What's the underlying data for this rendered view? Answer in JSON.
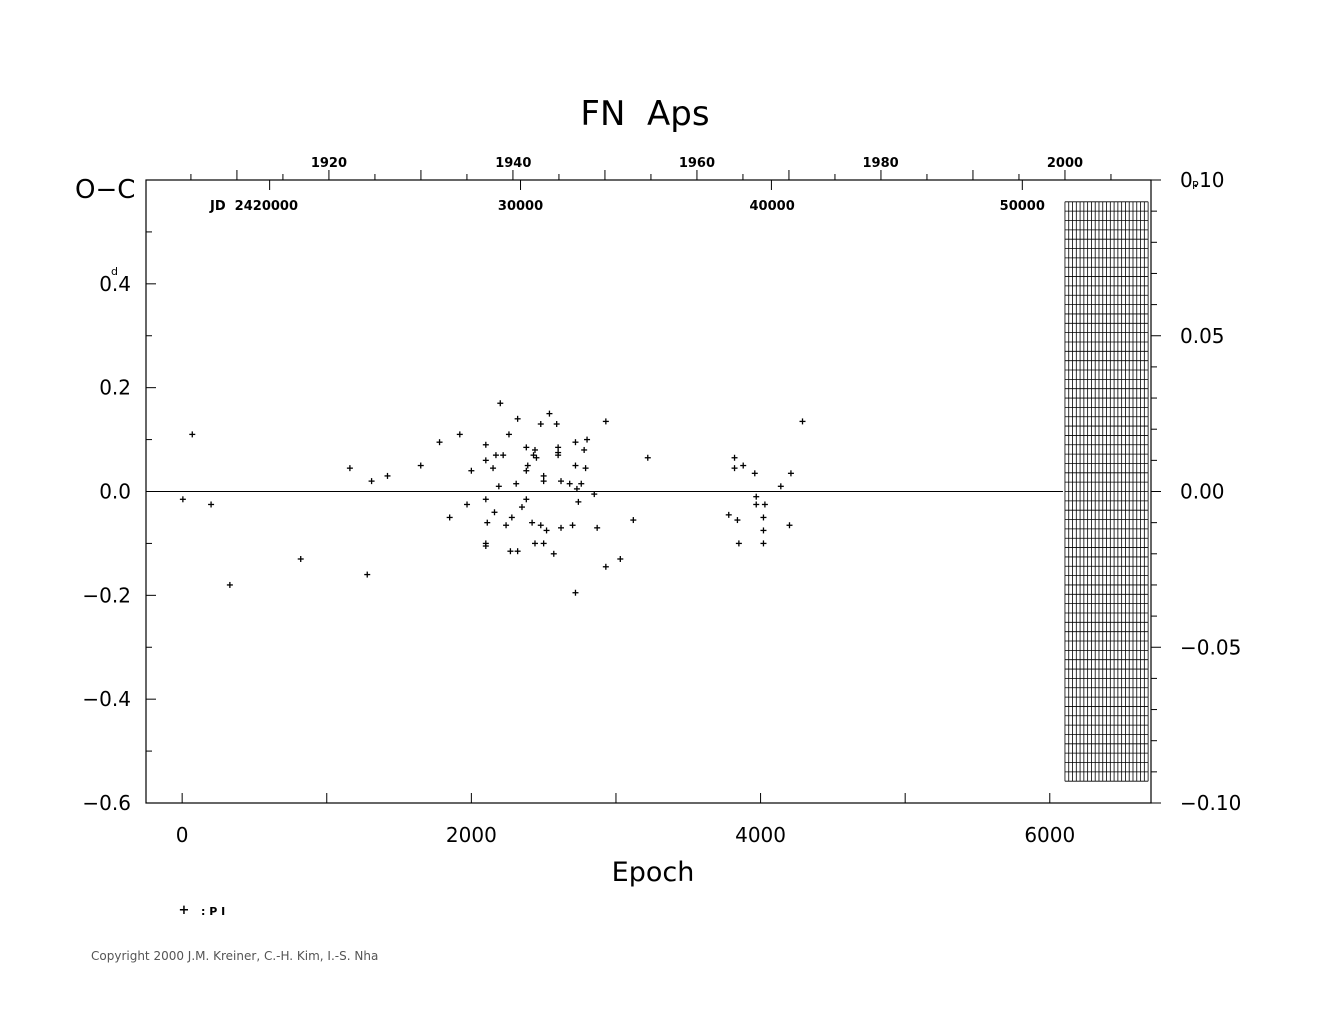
{
  "chart_data": {
    "type": "scatter",
    "title": "FN  Aps",
    "xlabel": "Epoch",
    "ylabel": "O−C",
    "y_unit_mark": "d",
    "right_unit_mark": "P",
    "jd_label": "JD  2420000",
    "xlim": [
      -250,
      6700
    ],
    "ylim": [
      -0.6,
      0.6
    ],
    "x_ticks": [
      "0",
      "2000",
      "4000",
      "6000"
    ],
    "y_ticks": [
      {
        "value": 0.4,
        "label": "0.4"
      },
      {
        "value": 0.2,
        "label": "0.2"
      },
      {
        "value": 0.0,
        "label": "0.0"
      },
      {
        "value": -0.2,
        "label": "−0.2"
      },
      {
        "value": -0.4,
        "label": "−0.4"
      },
      {
        "value": -0.6,
        "label": "−0.6"
      }
    ],
    "right_ticks": [
      {
        "value": 0.1,
        "label": "0.10"
      },
      {
        "value": 0.05,
        "label": "0.05"
      },
      {
        "value": 0.0,
        "label": "0.00"
      },
      {
        "value": -0.05,
        "label": "−0.05"
      },
      {
        "value": -0.1,
        "label": "−0.10"
      }
    ],
    "right_ylim": [
      -0.1,
      0.1
    ],
    "year_ticks": [
      {
        "year": 1920,
        "epoch": 1015
      },
      {
        "year": 1940,
        "epoch": 2290
      },
      {
        "year": 1960,
        "epoch": 3560
      },
      {
        "year": 1980,
        "epoch": 4830
      },
      {
        "year": 2000,
        "epoch": 6105
      }
    ],
    "jd_ticks": [
      {
        "label": "30000",
        "epoch": 2340
      },
      {
        "label": "40000",
        "epoch": 4080
      },
      {
        "label": "50000",
        "epoch": 5810
      }
    ],
    "legend": {
      "symbol": "+",
      "label": ": P I"
    },
    "hatched_region_epoch": [
      6105,
      6680
    ],
    "series": [
      {
        "name": "P I",
        "points": [
          [
            5,
            -0.015
          ],
          [
            70,
            0.11
          ],
          [
            200,
            -0.025
          ],
          [
            330,
            -0.18
          ],
          [
            820,
            -0.13
          ],
          [
            1160,
            0.045
          ],
          [
            1280,
            -0.16
          ],
          [
            1310,
            0.02
          ],
          [
            1420,
            0.03
          ],
          [
            1650,
            0.05
          ],
          [
            1780,
            0.095
          ],
          [
            1850,
            -0.05
          ],
          [
            1920,
            0.11
          ],
          [
            1970,
            -0.025
          ],
          [
            2000,
            0.04
          ],
          [
            2100,
            0.09
          ],
          [
            2100,
            0.06
          ],
          [
            2100,
            -0.015
          ],
          [
            2110,
            -0.06
          ],
          [
            2100,
            -0.105
          ],
          [
            2100,
            -0.1
          ],
          [
            2150,
            0.045
          ],
          [
            2170,
            0.07
          ],
          [
            2190,
            0.01
          ],
          [
            2200,
            0.17
          ],
          [
            2160,
            -0.04
          ],
          [
            2220,
            0.07
          ],
          [
            2240,
            -0.065
          ],
          [
            2260,
            0.11
          ],
          [
            2270,
            -0.115
          ],
          [
            2280,
            -0.05
          ],
          [
            2310,
            0.015
          ],
          [
            2320,
            -0.115
          ],
          [
            2320,
            0.14
          ],
          [
            2350,
            -0.03
          ],
          [
            2380,
            -0.015
          ],
          [
            2380,
            0.085
          ],
          [
            2380,
            0.04
          ],
          [
            2390,
            0.05
          ],
          [
            2420,
            -0.06
          ],
          [
            2430,
            0.07
          ],
          [
            2440,
            0.08
          ],
          [
            2440,
            -0.1
          ],
          [
            2450,
            0.065
          ],
          [
            2480,
            -0.065
          ],
          [
            2480,
            0.13
          ],
          [
            2500,
            0.03
          ],
          [
            2500,
            0.02
          ],
          [
            2500,
            -0.1
          ],
          [
            2520,
            -0.075
          ],
          [
            2540,
            0.15
          ],
          [
            2570,
            -0.12
          ],
          [
            2590,
            0.13
          ],
          [
            2600,
            0.085
          ],
          [
            2600,
            0.07
          ],
          [
            2600,
            0.075
          ],
          [
            2620,
            0.02
          ],
          [
            2620,
            -0.07
          ],
          [
            2680,
            0.015
          ],
          [
            2700,
            -0.065
          ],
          [
            2720,
            -0.195
          ],
          [
            2720,
            0.095
          ],
          [
            2720,
            0.05
          ],
          [
            2730,
            0.005
          ],
          [
            2740,
            -0.02
          ],
          [
            2760,
            0.015
          ],
          [
            2780,
            0.08
          ],
          [
            2790,
            0.045
          ],
          [
            2800,
            0.1
          ],
          [
            2850,
            -0.005
          ],
          [
            2870,
            -0.07
          ],
          [
            2930,
            -0.145
          ],
          [
            2930,
            0.135
          ],
          [
            3030,
            -0.13
          ],
          [
            3120,
            -0.055
          ],
          [
            3220,
            0.065
          ],
          [
            3780,
            -0.045
          ],
          [
            3820,
            0.065
          ],
          [
            3820,
            0.045
          ],
          [
            3840,
            -0.055
          ],
          [
            3850,
            -0.1
          ],
          [
            3880,
            0.05
          ],
          [
            3960,
            0.035
          ],
          [
            3970,
            -0.01
          ],
          [
            3970,
            -0.025
          ],
          [
            4020,
            -0.05
          ],
          [
            4020,
            -0.075
          ],
          [
            4020,
            -0.1
          ],
          [
            4030,
            -0.025
          ],
          [
            4140,
            0.01
          ],
          [
            4200,
            -0.065
          ],
          [
            4210,
            0.035
          ],
          [
            4290,
            0.135
          ]
        ]
      }
    ]
  },
  "copyright": "Copyright 2000 J.M. Kreiner, C.-H. Kim, I.-S. Nha"
}
